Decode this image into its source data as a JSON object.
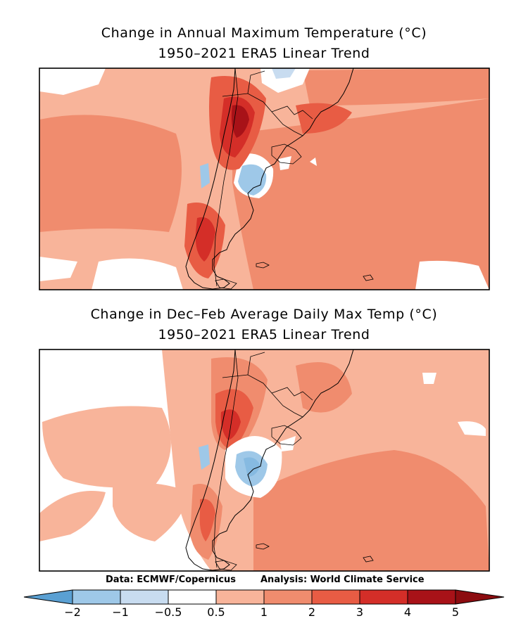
{
  "panels": [
    {
      "title_line1": "Change in Annual Maximum Temperature (°C)",
      "title_line2": "1950–2021 ERA5 Linear Trend"
    },
    {
      "title_line1": "Change in Dec–Feb Average Daily Max Temp (°C)",
      "title_line2": "1950–2021 ERA5 Linear Trend"
    }
  ],
  "credits": {
    "data": "Data: ECMWF/Copernicus",
    "analysis": "Analysis: World Climate Service"
  },
  "colorbar": {
    "labels": [
      "−2",
      "−1",
      "−0.5",
      "0.5",
      "1",
      "2",
      "3",
      "4",
      "5"
    ],
    "colors": [
      "#5aa0d3",
      "#9ec8e8",
      "#c8dcf0",
      "#ffffff",
      "#f8b49a",
      "#f08c6e",
      "#e85c44",
      "#d42e28",
      "#a81218"
    ],
    "low_extend_color": "#5aa0d3",
    "high_extend_color": "#8c0c10"
  },
  "map_colors": {
    "ocean_light": "#f8b49a",
    "mid": "#f08c6e",
    "strong": "#e85c44",
    "very_strong": "#d42e28",
    "extreme": "#a81218",
    "neutral": "#ffffff",
    "cool_light": "#c8dcf0",
    "cool": "#9ec8e8"
  }
}
